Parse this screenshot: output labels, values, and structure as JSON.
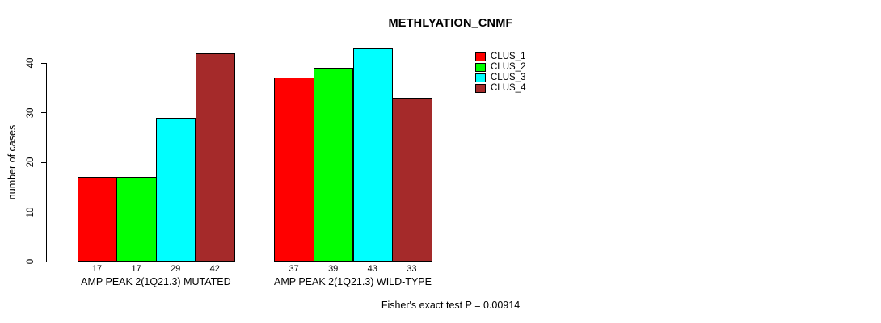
{
  "chart_data": {
    "type": "bar",
    "title": "METHLYATION_CNMF",
    "ylabel": "number of cases",
    "xlabel": "",
    "categories": [
      "AMP PEAK 2(1Q21.3) MUTATED",
      "AMP PEAK 2(1Q21.3) WILD-TYPE"
    ],
    "series": [
      {
        "name": "CLUS_1",
        "color": "#FF0000",
        "values": [
          17,
          37
        ]
      },
      {
        "name": "CLUS_2",
        "color": "#00FF00",
        "values": [
          17,
          39
        ]
      },
      {
        "name": "CLUS_3",
        "color": "#00FFFF",
        "values": [
          29,
          43
        ]
      },
      {
        "name": "CLUS_4",
        "color": "#A52A2A",
        "values": [
          42,
          33
        ]
      }
    ],
    "bar_value_labels": [
      [
        17,
        17,
        29,
        42
      ],
      [
        37,
        39,
        43,
        33
      ]
    ],
    "yticks": [
      0,
      10,
      20,
      30,
      40
    ],
    "ylim": [
      0,
      43
    ],
    "grid": false,
    "legend_position": "right",
    "annotation": "Fisher's exact test P = 0.00914"
  },
  "colors": {
    "background": "#FFFFFF",
    "axis": "#000000",
    "text": "#000000"
  }
}
